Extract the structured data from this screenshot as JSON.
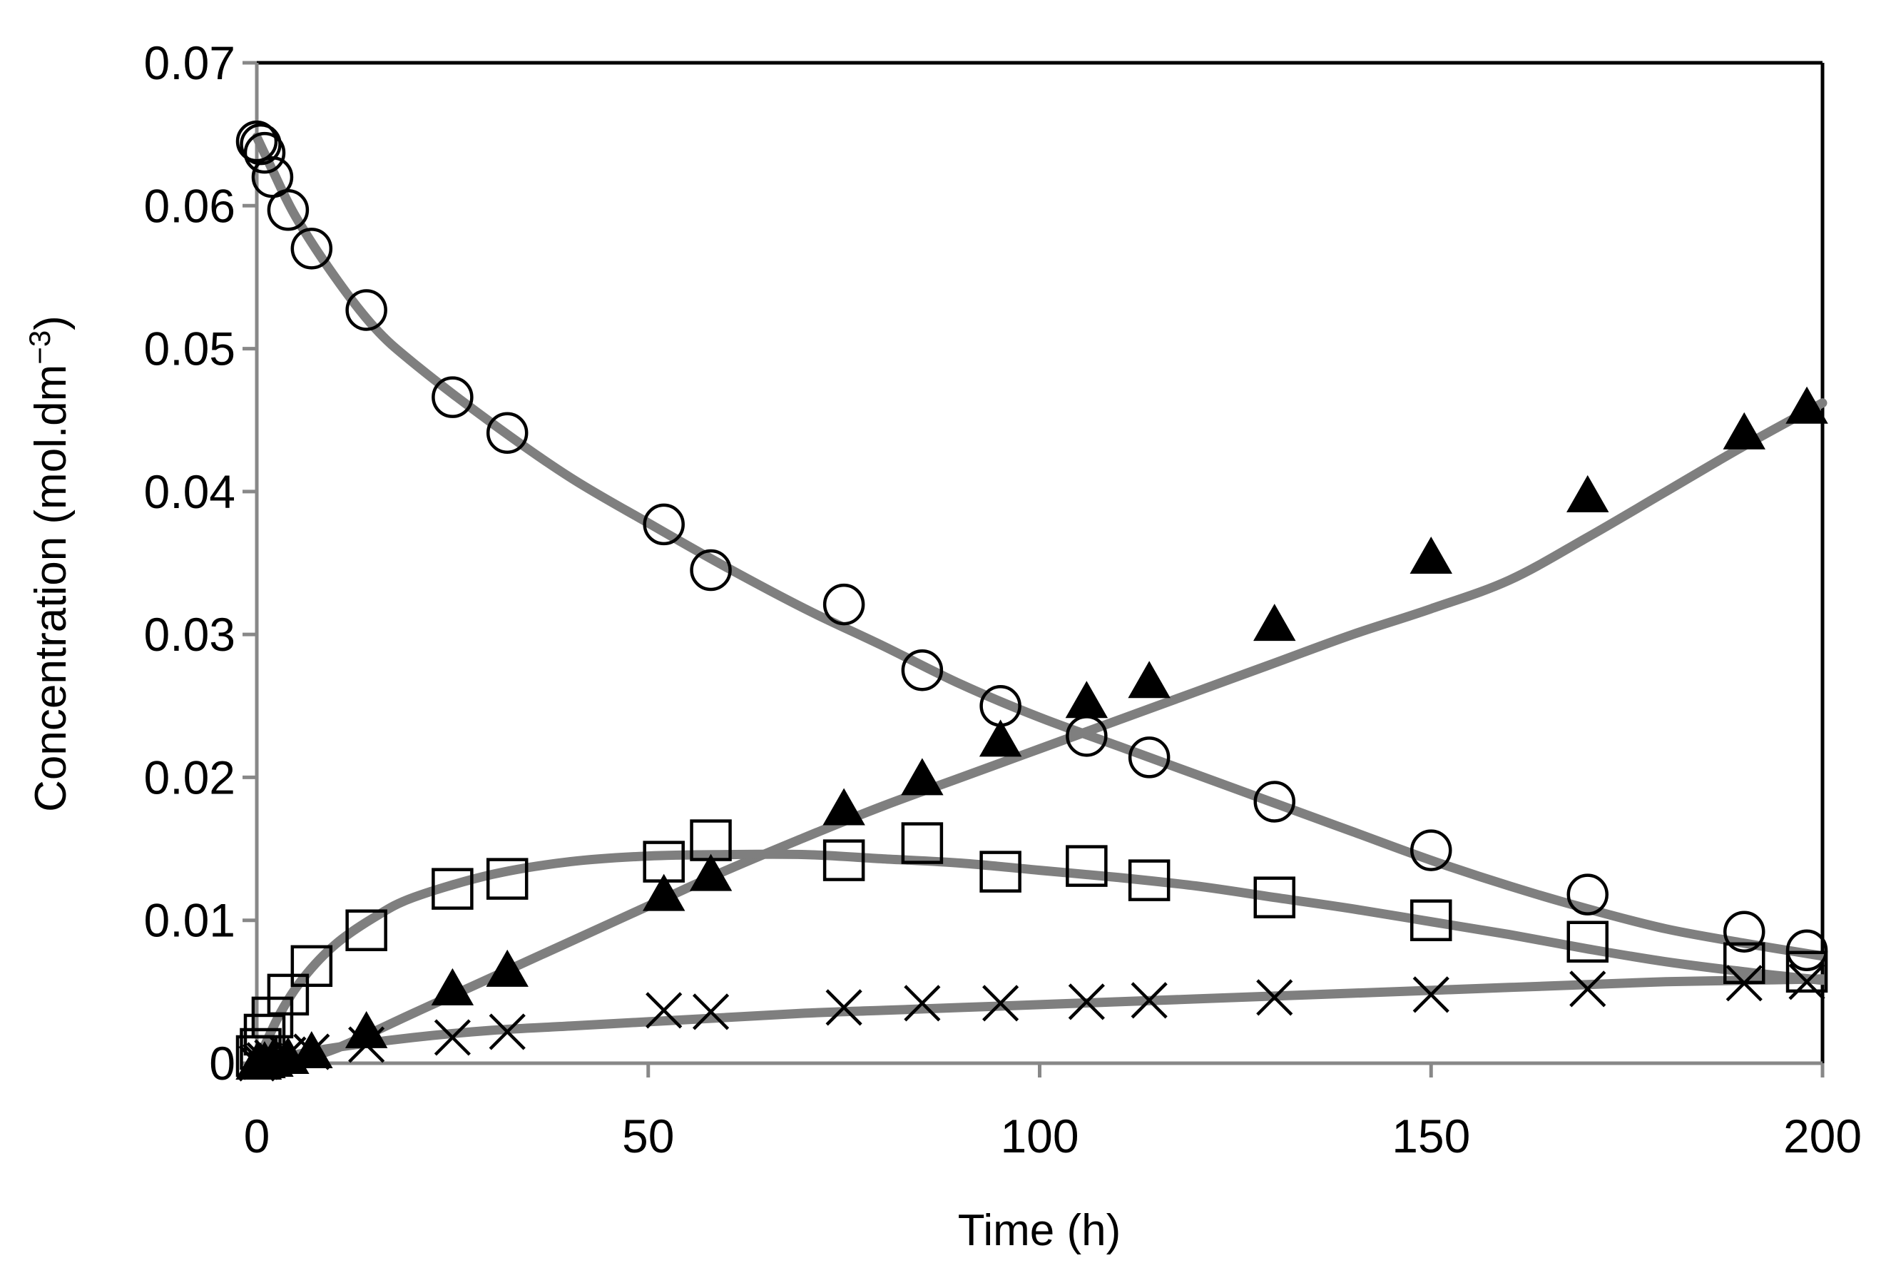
{
  "chart_data": {
    "type": "scatter",
    "title": "",
    "xlabel": "Time (h)",
    "ylabel_main": "Concentration (mol.dm",
    "ylabel_sup": "−3",
    "ylabel_close": ")",
    "xlim": [
      0,
      200
    ],
    "ylim": [
      0,
      0.07
    ],
    "xticks": [
      0,
      50,
      100,
      150,
      200
    ],
    "xtick_labels": [
      "0",
      "50",
      "100",
      "150",
      "200"
    ],
    "yticks": [
      0,
      0.01,
      0.02,
      0.03,
      0.04,
      0.05,
      0.06,
      0.07
    ],
    "ytick_labels": [
      "0",
      "0.01",
      "0.02",
      "0.03",
      "0.04",
      "0.05",
      "0.06",
      "0.07"
    ],
    "grid": false,
    "colors": {
      "fit_line": "#7f7f7f",
      "axis": "#888888",
      "marker": "#000000"
    },
    "series": [
      {
        "name": "circles",
        "marker": "circle-open",
        "x": [
          0,
          0.5,
          1,
          2,
          4,
          7,
          14,
          25,
          32,
          52,
          58,
          75,
          85,
          95,
          106,
          114,
          130,
          150,
          170,
          190,
          198
        ],
        "y": [
          0.0645,
          0.0643,
          0.0637,
          0.062,
          0.0597,
          0.057,
          0.0527,
          0.0466,
          0.0441,
          0.0377,
          0.0345,
          0.0321,
          0.0275,
          0.025,
          0.0229,
          0.0214,
          0.0183,
          0.0149,
          0.0118,
          0.0092,
          0.0079
        ],
        "fit": {
          "x": [
            0,
            2,
            5,
            10,
            15,
            20,
            30,
            40,
            50,
            60,
            70,
            80,
            90,
            100,
            110,
            120,
            130,
            140,
            150,
            160,
            170,
            180,
            190,
            200
          ],
          "y": [
            0.0648,
            0.0625,
            0.0592,
            0.055,
            0.0515,
            0.049,
            0.0448,
            0.041,
            0.0378,
            0.0347,
            0.0318,
            0.0292,
            0.0265,
            0.0242,
            0.0222,
            0.0202,
            0.0182,
            0.0162,
            0.0142,
            0.0124,
            0.0108,
            0.0094,
            0.0084,
            0.0075
          ]
        }
      },
      {
        "name": "triangles",
        "marker": "triangle-filled",
        "x": [
          0,
          0.5,
          1,
          2,
          4,
          7,
          14,
          25,
          32,
          52,
          58,
          75,
          85,
          95,
          106,
          114,
          130,
          150,
          170,
          190,
          198
        ],
        "y": [
          0,
          0,
          0.0001,
          0.0002,
          0.0004,
          0.0008,
          0.0022,
          0.0052,
          0.0065,
          0.0118,
          0.0132,
          0.0178,
          0.0199,
          0.0226,
          0.0253,
          0.0267,
          0.0307,
          0.0354,
          0.0397,
          0.0441,
          0.0459
        ],
        "fit": {
          "x": [
            0,
            5,
            10,
            20,
            30,
            40,
            50,
            60,
            70,
            80,
            90,
            100,
            110,
            120,
            130,
            140,
            150,
            160,
            170,
            180,
            190,
            200
          ],
          "y": [
            0,
            0.0003,
            0.001,
            0.0035,
            0.006,
            0.0085,
            0.011,
            0.0135,
            0.0158,
            0.018,
            0.02,
            0.022,
            0.024,
            0.026,
            0.028,
            0.03,
            0.0318,
            0.0338,
            0.0368,
            0.04,
            0.0432,
            0.0462
          ]
        }
      },
      {
        "name": "squares",
        "marker": "square-open",
        "x": [
          0,
          0.5,
          1,
          2,
          4,
          7,
          14,
          25,
          32,
          52,
          58,
          75,
          85,
          95,
          106,
          114,
          130,
          150,
          170,
          190,
          198
        ],
        "y": [
          0.0005,
          0.001,
          0.002,
          0.0032,
          0.0048,
          0.0068,
          0.0093,
          0.0122,
          0.0129,
          0.0141,
          0.0156,
          0.0142,
          0.0154,
          0.0134,
          0.0138,
          0.0128,
          0.0116,
          0.01,
          0.0085,
          0.007,
          0.0064
        ],
        "fit": {
          "x": [
            0,
            3,
            6,
            10,
            15,
            20,
            30,
            40,
            50,
            60,
            70,
            80,
            90,
            100,
            110,
            120,
            130,
            140,
            150,
            160,
            170,
            180,
            190,
            200
          ],
          "y": [
            0,
            0.0035,
            0.006,
            0.0083,
            0.0102,
            0.0116,
            0.0132,
            0.0141,
            0.0145,
            0.0146,
            0.0146,
            0.0143,
            0.014,
            0.0135,
            0.013,
            0.0124,
            0.0116,
            0.0108,
            0.0099,
            0.009,
            0.008,
            0.0071,
            0.0064,
            0.0058
          ]
        }
      },
      {
        "name": "crosses",
        "marker": "x",
        "x": [
          0,
          0.5,
          1,
          2,
          4,
          7,
          14,
          25,
          32,
          52,
          58,
          75,
          85,
          95,
          106,
          114,
          130,
          150,
          170,
          190,
          198
        ],
        "y": [
          0,
          0.0001,
          0.0002,
          0.0004,
          0.0006,
          0.0008,
          0.0013,
          0.0018,
          0.0022,
          0.0037,
          0.0036,
          0.0039,
          0.0042,
          0.0042,
          0.0043,
          0.0044,
          0.0046,
          0.0048,
          0.0052,
          0.0056,
          0.0057
        ],
        "fit": {
          "x": [
            0,
            5,
            10,
            20,
            30,
            40,
            50,
            60,
            70,
            80,
            90,
            100,
            110,
            120,
            130,
            140,
            150,
            160,
            170,
            180,
            190,
            200
          ],
          "y": [
            0,
            0.0006,
            0.0011,
            0.0018,
            0.0023,
            0.0026,
            0.0029,
            0.0032,
            0.0035,
            0.0037,
            0.0039,
            0.0041,
            0.0043,
            0.0045,
            0.0047,
            0.0049,
            0.0051,
            0.0053,
            0.0055,
            0.0057,
            0.0058,
            0.0059
          ]
        }
      }
    ]
  }
}
